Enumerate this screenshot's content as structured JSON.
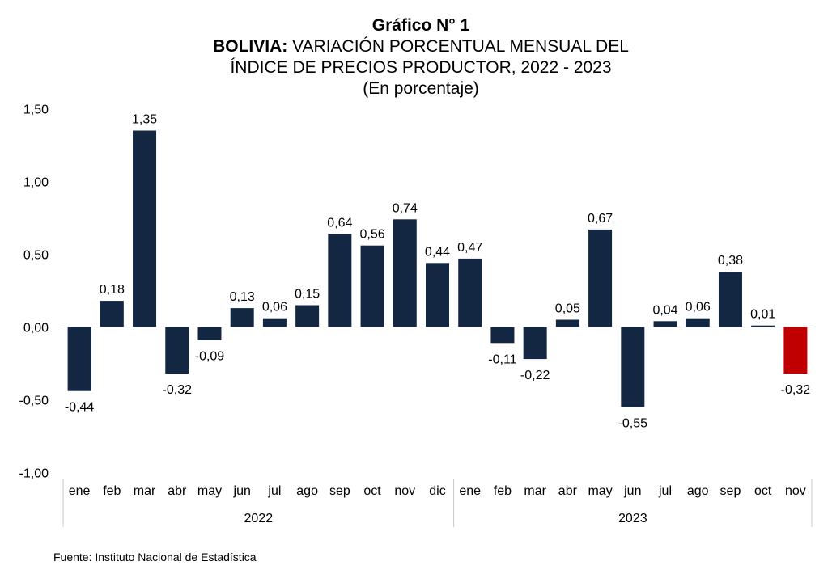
{
  "title": {
    "line1": "Gráfico N° 1",
    "line2_bold": "BOLIVIA:",
    "line2_rest": " VARIACIÓN PORCENTUAL MENSUAL DEL",
    "line3": "ÍNDICE DE PRECIOS PRODUCTOR, 2022 - 2023",
    "line4": "(En porcentaje)"
  },
  "source": "Fuente: Instituto Nacional de Estadística",
  "colors": {
    "bar": "#132743",
    "highlight": "#c00000"
  },
  "chart_data": {
    "type": "bar",
    "ylim": [
      -1.0,
      1.5
    ],
    "yticks": [
      "1,50",
      "1,00",
      "0,50",
      "0,00",
      "-0,50",
      "-1,00"
    ],
    "ytick_values": [
      1.5,
      1.0,
      0.5,
      0.0,
      -0.5,
      -1.0
    ],
    "groups": [
      {
        "year": "2022",
        "count": 12
      },
      {
        "year": "2023",
        "count": 11
      }
    ],
    "categories": [
      "ene",
      "feb",
      "mar",
      "abr",
      "may",
      "jun",
      "jul",
      "ago",
      "sep",
      "oct",
      "nov",
      "dic",
      "ene",
      "feb",
      "mar",
      "abr",
      "may",
      "jun",
      "jul",
      "ago",
      "sep",
      "oct",
      "nov"
    ],
    "values": [
      -0.44,
      0.18,
      1.35,
      -0.32,
      -0.09,
      0.13,
      0.06,
      0.15,
      0.64,
      0.56,
      0.74,
      0.44,
      0.47,
      -0.11,
      -0.22,
      0.05,
      0.67,
      -0.55,
      0.04,
      0.06,
      0.38,
      0.01,
      -0.32
    ],
    "labels": [
      "-0,44",
      "0,18",
      "1,35",
      "-0,32",
      "-0,09",
      "0,13",
      "0,06",
      "0,15",
      "0,64",
      "0,56",
      "0,74",
      "0,44",
      "0,47",
      "-0,11",
      "-0,22",
      "0,05",
      "0,67",
      "-0,55",
      "0,04",
      "0,06",
      "0,38",
      "0,01",
      "-0,32"
    ],
    "highlight_index": 22
  }
}
